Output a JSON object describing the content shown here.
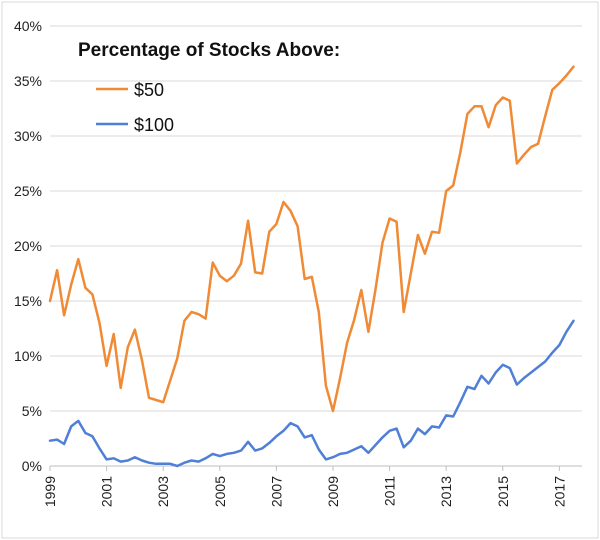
{
  "chart_data": {
    "type": "line",
    "legend_title": "Percentage of Stocks Above:",
    "legend_position": "top-left",
    "grid": "horizontal",
    "ylim": [
      0,
      40
    ],
    "yticks": [
      {
        "value": 0,
        "label": "0%"
      },
      {
        "value": 5,
        "label": "5%"
      },
      {
        "value": 10,
        "label": "10%"
      },
      {
        "value": 15,
        "label": "15%"
      },
      {
        "value": 20,
        "label": "20%"
      },
      {
        "value": 25,
        "label": "25%"
      },
      {
        "value": 30,
        "label": "30%"
      },
      {
        "value": 35,
        "label": "35%"
      },
      {
        "value": 40,
        "label": "40%"
      }
    ],
    "xlim": [
      1999,
      2017.8
    ],
    "xticks": [
      {
        "value": 1999,
        "label": "1999"
      },
      {
        "value": 2001,
        "label": "2001"
      },
      {
        "value": 2003,
        "label": "2003"
      },
      {
        "value": 2005,
        "label": "2005"
      },
      {
        "value": 2007,
        "label": "2007"
      },
      {
        "value": 2009,
        "label": "2009"
      },
      {
        "value": 2011,
        "label": "2011"
      },
      {
        "value": 2013,
        "label": "2013"
      },
      {
        "value": 2015,
        "label": "2015"
      },
      {
        "value": 2017,
        "label": "2017"
      }
    ],
    "series": [
      {
        "name": "$50",
        "color": "#f08a35",
        "points": [
          [
            1999.0,
            15.0
          ],
          [
            1999.25,
            17.8
          ],
          [
            1999.5,
            13.7
          ],
          [
            1999.75,
            16.5
          ],
          [
            2000.0,
            18.8
          ],
          [
            2000.25,
            16.2
          ],
          [
            2000.5,
            15.6
          ],
          [
            2000.75,
            13.0
          ],
          [
            2001.0,
            9.1
          ],
          [
            2001.25,
            12.0
          ],
          [
            2001.5,
            7.1
          ],
          [
            2001.75,
            10.8
          ],
          [
            2002.0,
            12.4
          ],
          [
            2002.25,
            9.6
          ],
          [
            2002.5,
            6.2
          ],
          [
            2002.75,
            6.0
          ],
          [
            2003.0,
            5.8
          ],
          [
            2003.25,
            7.8
          ],
          [
            2003.5,
            9.8
          ],
          [
            2003.75,
            13.2
          ],
          [
            2004.0,
            14.0
          ],
          [
            2004.25,
            13.8
          ],
          [
            2004.5,
            13.4
          ],
          [
            2004.75,
            18.5
          ],
          [
            2005.0,
            17.3
          ],
          [
            2005.25,
            16.8
          ],
          [
            2005.5,
            17.3
          ],
          [
            2005.75,
            18.4
          ],
          [
            2006.0,
            22.3
          ],
          [
            2006.25,
            17.6
          ],
          [
            2006.5,
            17.5
          ],
          [
            2006.75,
            21.3
          ],
          [
            2007.0,
            22.0
          ],
          [
            2007.25,
            24.0
          ],
          [
            2007.5,
            23.2
          ],
          [
            2007.75,
            21.8
          ],
          [
            2008.0,
            17.0
          ],
          [
            2008.25,
            17.2
          ],
          [
            2008.5,
            14.0
          ],
          [
            2008.75,
            7.3
          ],
          [
            2009.0,
            5.0
          ],
          [
            2009.25,
            8.0
          ],
          [
            2009.5,
            11.2
          ],
          [
            2009.75,
            13.3
          ],
          [
            2010.0,
            16.0
          ],
          [
            2010.25,
            12.2
          ],
          [
            2010.5,
            16.0
          ],
          [
            2010.75,
            20.3
          ],
          [
            2011.0,
            22.5
          ],
          [
            2011.25,
            22.2
          ],
          [
            2011.5,
            14.0
          ],
          [
            2011.75,
            17.5
          ],
          [
            2012.0,
            21.0
          ],
          [
            2012.25,
            19.3
          ],
          [
            2012.5,
            21.3
          ],
          [
            2012.75,
            21.2
          ],
          [
            2013.0,
            25.0
          ],
          [
            2013.25,
            25.5
          ],
          [
            2013.5,
            28.5
          ],
          [
            2013.75,
            32.0
          ],
          [
            2014.0,
            32.7
          ],
          [
            2014.25,
            32.7
          ],
          [
            2014.5,
            30.8
          ],
          [
            2014.75,
            32.8
          ],
          [
            2015.0,
            33.5
          ],
          [
            2015.25,
            33.2
          ],
          [
            2015.5,
            27.5
          ],
          [
            2015.75,
            28.3
          ],
          [
            2016.0,
            29.0
          ],
          [
            2016.25,
            29.3
          ],
          [
            2016.5,
            31.8
          ],
          [
            2016.75,
            34.2
          ],
          [
            2017.0,
            34.8
          ],
          [
            2017.25,
            35.5
          ],
          [
            2017.5,
            36.3
          ]
        ]
      },
      {
        "name": "$100",
        "color": "#4f7fd6",
        "points": [
          [
            1999.0,
            2.3
          ],
          [
            1999.25,
            2.4
          ],
          [
            1999.5,
            2.0
          ],
          [
            1999.75,
            3.6
          ],
          [
            2000.0,
            4.1
          ],
          [
            2000.25,
            3.0
          ],
          [
            2000.5,
            2.7
          ],
          [
            2000.75,
            1.6
          ],
          [
            2001.0,
            0.6
          ],
          [
            2001.25,
            0.7
          ],
          [
            2001.5,
            0.4
          ],
          [
            2001.75,
            0.5
          ],
          [
            2002.0,
            0.8
          ],
          [
            2002.25,
            0.5
          ],
          [
            2002.5,
            0.3
          ],
          [
            2002.75,
            0.2
          ],
          [
            2003.0,
            0.2
          ],
          [
            2003.25,
            0.2
          ],
          [
            2003.5,
            0.0
          ],
          [
            2003.75,
            0.3
          ],
          [
            2004.0,
            0.5
          ],
          [
            2004.25,
            0.4
          ],
          [
            2004.5,
            0.7
          ],
          [
            2004.75,
            1.1
          ],
          [
            2005.0,
            0.9
          ],
          [
            2005.25,
            1.1
          ],
          [
            2005.5,
            1.2
          ],
          [
            2005.75,
            1.4
          ],
          [
            2006.0,
            2.2
          ],
          [
            2006.25,
            1.4
          ],
          [
            2006.5,
            1.6
          ],
          [
            2006.75,
            2.1
          ],
          [
            2007.0,
            2.7
          ],
          [
            2007.25,
            3.2
          ],
          [
            2007.5,
            3.9
          ],
          [
            2007.75,
            3.6
          ],
          [
            2008.0,
            2.6
          ],
          [
            2008.25,
            2.8
          ],
          [
            2008.5,
            1.5
          ],
          [
            2008.75,
            0.6
          ],
          [
            2009.0,
            0.8
          ],
          [
            2009.25,
            1.1
          ],
          [
            2009.5,
            1.2
          ],
          [
            2009.75,
            1.5
          ],
          [
            2010.0,
            1.8
          ],
          [
            2010.25,
            1.2
          ],
          [
            2010.5,
            1.9
          ],
          [
            2010.75,
            2.6
          ],
          [
            2011.0,
            3.2
          ],
          [
            2011.25,
            3.4
          ],
          [
            2011.5,
            1.7
          ],
          [
            2011.75,
            2.3
          ],
          [
            2012.0,
            3.4
          ],
          [
            2012.25,
            2.9
          ],
          [
            2012.5,
            3.6
          ],
          [
            2012.75,
            3.5
          ],
          [
            2013.0,
            4.6
          ],
          [
            2013.25,
            4.5
          ],
          [
            2013.5,
            5.8
          ],
          [
            2013.75,
            7.2
          ],
          [
            2014.0,
            7.0
          ],
          [
            2014.25,
            8.2
          ],
          [
            2014.5,
            7.5
          ],
          [
            2014.75,
            8.5
          ],
          [
            2015.0,
            9.2
          ],
          [
            2015.25,
            8.9
          ],
          [
            2015.5,
            7.4
          ],
          [
            2015.75,
            8.0
          ],
          [
            2016.0,
            8.5
          ],
          [
            2016.25,
            9.0
          ],
          [
            2016.5,
            9.5
          ],
          [
            2016.75,
            10.3
          ],
          [
            2017.0,
            11.0
          ],
          [
            2017.25,
            12.2
          ],
          [
            2017.5,
            13.2
          ]
        ]
      }
    ]
  }
}
